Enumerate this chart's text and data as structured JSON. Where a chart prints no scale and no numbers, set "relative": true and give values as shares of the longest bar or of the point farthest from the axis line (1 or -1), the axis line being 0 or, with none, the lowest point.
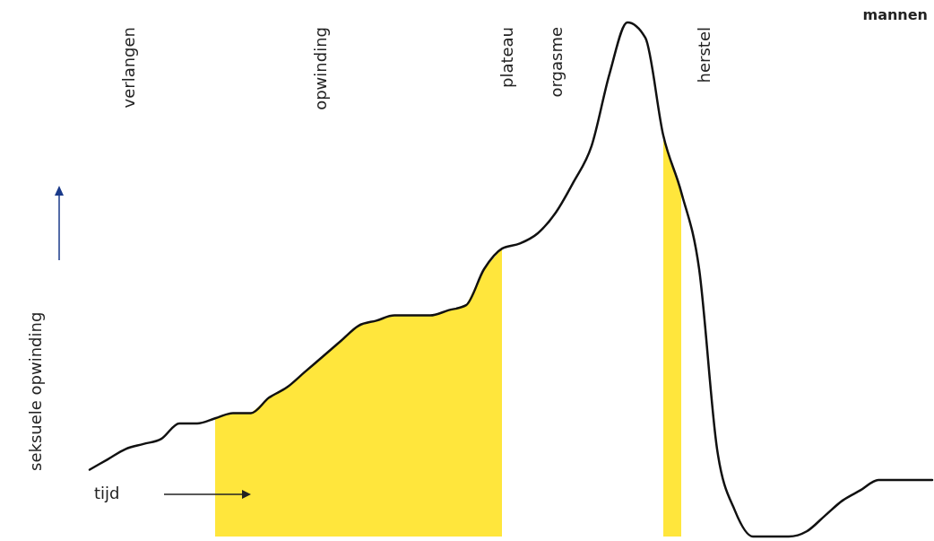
{
  "chart_data": {
    "type": "line",
    "relative": true,
    "title": "mannen",
    "xlabel": "tijd",
    "ylabel": "seksuele opwinding",
    "annotations": [
      "verlangen",
      "opwinding",
      "plateau",
      "orgasme",
      "herstel"
    ],
    "categories": [
      null,
      null,
      null,
      null,
      null,
      null,
      null,
      null,
      null,
      null,
      null,
      null,
      null,
      null,
      null,
      null,
      null,
      null,
      null,
      null,
      null,
      null,
      null,
      null,
      null,
      null,
      null,
      null,
      null,
      null,
      null,
      null,
      null,
      null,
      null,
      null,
      null,
      null,
      null,
      null,
      null,
      null,
      null,
      null,
      null,
      null,
      null,
      null
    ],
    "series": [
      {
        "type": "area",
        "color": "#ffe21a",
        "values": [
          null,
          null,
          null,
          null,
          null,
          null,
          null,
          0.23,
          0.24,
          0.24,
          0.27,
          0.29,
          0.32,
          0.35,
          0.38,
          0.41,
          0.42,
          0.43,
          0.43,
          0.43,
          0.44,
          0.45,
          0.52,
          0.56,
          null,
          null,
          null,
          null,
          null,
          null,
          null,
          null,
          0.78,
          0.67,
          null,
          null,
          null,
          null,
          null,
          null,
          null,
          null,
          null,
          null,
          null,
          null,
          null,
          null
        ]
      },
      {
        "color": "#111111",
        "values": [
          0.13,
          0.15,
          0.17,
          0.18,
          0.19,
          0.22,
          0.22,
          0.23,
          0.24,
          0.24,
          0.27,
          0.29,
          0.32,
          0.35,
          0.38,
          0.41,
          0.42,
          0.43,
          0.43,
          0.43,
          0.44,
          0.45,
          0.52,
          0.56,
          0.57,
          0.59,
          0.63,
          0.69,
          0.76,
          0.9,
          1,
          0.97,
          0.78,
          0.67,
          0.52,
          0.17,
          0.05,
          0,
          0,
          0,
          0.01,
          0.04,
          0.07,
          0.09,
          0.11,
          0.11,
          0.11,
          0.11
        ]
      }
    ]
  }
}
